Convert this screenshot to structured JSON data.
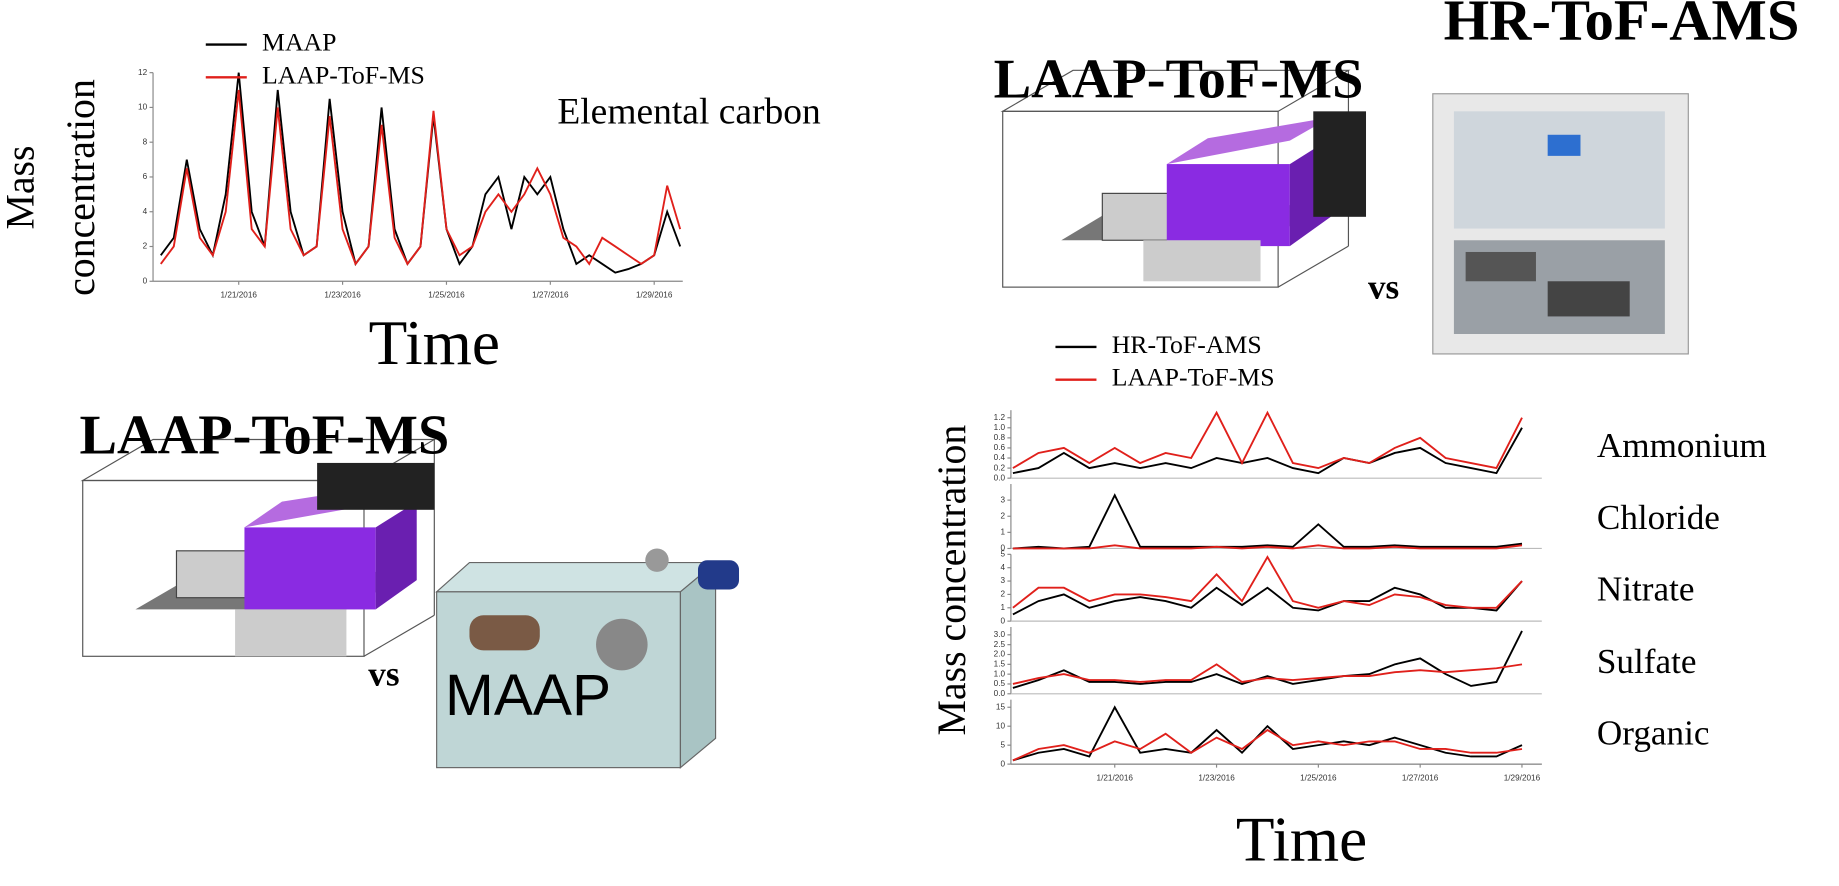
{
  "labels": [
    "HR-ToF-AMS",
    "LAAP-ToF-MS",
    "vs",
    "LAAP-ToF-MS",
    "vs",
    "MAAP"
  ],
  "chart_data": [
    {
      "type": "line",
      "annotation": "Elemental carbon",
      "xlabel": "Time",
      "ylabel": [
        "Mass",
        "concentration"
      ],
      "x": [
        19.5,
        19.75,
        20,
        20.25,
        20.5,
        20.75,
        21,
        21.25,
        21.5,
        21.75,
        22,
        22.25,
        22.5,
        22.75,
        23,
        23.25,
        23.5,
        23.75,
        24,
        24.25,
        24.5,
        24.75,
        25,
        25.25,
        25.5,
        25.75,
        26,
        26.25,
        26.5,
        26.75,
        27,
        27.25,
        27.5,
        27.75,
        28,
        28.25,
        28.5,
        28.75,
        29,
        29.25,
        29.5
      ],
      "xlim": [
        19.35,
        29.55
      ],
      "xticks": [
        {
          "value": 21,
          "label": "1/21/2016"
        },
        {
          "value": 23,
          "label": "1/23/2016"
        },
        {
          "value": 25,
          "label": "1/25/2016"
        },
        {
          "value": 27,
          "label": "1/27/2016"
        },
        {
          "value": 29,
          "label": "1/29/2016"
        }
      ],
      "ylim": [
        0,
        12
      ],
      "yticks": [
        0,
        2,
        4,
        6,
        8,
        10,
        12
      ],
      "series": [
        {
          "name": "MAAP",
          "color": "#000000",
          "values": [
            1.5,
            2.5,
            7,
            3,
            1.5,
            5,
            12,
            4,
            2,
            11,
            4,
            1.5,
            2,
            10.5,
            4,
            1,
            2,
            10,
            3,
            1,
            2,
            9.5,
            3,
            1,
            2,
            5,
            6,
            3,
            6,
            5,
            6,
            3,
            1,
            1.5,
            1,
            0.5,
            0.7,
            1,
            1.5,
            4,
            2
          ]
        },
        {
          "name": "LAAP-ToF-MS",
          "color": "#e0201b",
          "values": [
            1,
            2,
            6.5,
            2.5,
            1.5,
            4,
            11,
            3,
            2,
            10,
            3,
            1.5,
            2,
            9.5,
            3,
            1,
            2,
            9,
            2.5,
            1,
            2,
            9.8,
            3,
            1.5,
            2,
            4,
            5,
            4,
            5,
            6.5,
            5,
            2.5,
            2,
            1,
            2.5,
            2,
            1.5,
            1,
            1.5,
            5.5,
            3
          ]
        }
      ]
    },
    {
      "type": "line",
      "xlabel": "Time",
      "ylabel": "Mass concentration",
      "x": [
        19,
        19.5,
        20,
        20.5,
        21,
        21.5,
        22,
        22.5,
        23,
        23.5,
        24,
        24.5,
        25,
        25.5,
        26,
        26.5,
        27,
        27.5,
        28,
        28.5,
        29
      ],
      "xlim": [
        18.96,
        29.39
      ],
      "xticks": [
        {
          "value": 21,
          "label": "1/21/2016"
        },
        {
          "value": 23,
          "label": "1/23/2016"
        },
        {
          "value": 25,
          "label": "1/25/2016"
        },
        {
          "value": 27,
          "label": "1/27/2016"
        },
        {
          "value": 29,
          "label": "1/29/2016"
        }
      ],
      "series": [
        {
          "name": "HR-ToF-AMS",
          "color": "#000000"
        },
        {
          "name": "LAAP-ToF-MS",
          "color": "#e0201b"
        }
      ],
      "panels": [
        {
          "name": "Ammonium",
          "ylim": [
            0,
            1.35
          ],
          "yticks": [
            {
              "value": 0,
              "label": "0.0"
            },
            0.2,
            0.4,
            0.6,
            0.8,
            {
              "value": 1,
              "label": "1.0"
            },
            1.2
          ],
          "values": [
            [
              0.1,
              0.2,
              0.5,
              0.2,
              0.3,
              0.2,
              0.3,
              0.2,
              0.4,
              0.3,
              0.4,
              0.2,
              0.1,
              0.4,
              0.3,
              0.5,
              0.6,
              0.3,
              0.2,
              0.1,
              1.0
            ],
            [
              0.2,
              0.5,
              0.6,
              0.3,
              0.6,
              0.3,
              0.5,
              0.4,
              1.3,
              0.3,
              1.3,
              0.3,
              0.2,
              0.4,
              0.3,
              0.6,
              0.8,
              0.4,
              0.3,
              0.2,
              1.2
            ]
          ]
        },
        {
          "name": "Chloride",
          "ylim": [
            0,
            4
          ],
          "yticks": [
            0,
            1,
            2,
            3
          ],
          "values": [
            [
              0,
              0.1,
              0,
              0.1,
              3.3,
              0.1,
              0.1,
              0.1,
              0.1,
              0.1,
              0.2,
              0.1,
              1.5,
              0.1,
              0.1,
              0.2,
              0.1,
              0.1,
              0.1,
              0.1,
              0.3
            ],
            [
              0,
              0,
              0,
              0,
              0.2,
              0,
              0,
              0,
              0.1,
              0,
              0.1,
              0,
              0.2,
              0,
              0,
              0.1,
              0,
              0,
              0,
              0,
              0.2
            ]
          ]
        },
        {
          "name": "Nitrate",
          "ylim": [
            0,
            5
          ],
          "yticks": [
            0,
            1,
            2,
            3,
            4,
            5
          ],
          "values": [
            [
              0.5,
              1.5,
              2,
              1,
              1.5,
              1.8,
              1.5,
              1,
              2.5,
              1.2,
              2.5,
              1,
              0.8,
              1.5,
              1.5,
              2.5,
              2,
              1,
              1,
              0.8,
              3
            ],
            [
              1,
              2.5,
              2.5,
              1.5,
              2,
              2,
              1.8,
              1.5,
              3.5,
              1.5,
              4.8,
              1.5,
              1,
              1.5,
              1.2,
              2,
              1.8,
              1.2,
              1,
              1,
              3
            ]
          ]
        },
        {
          "name": "Sulfate",
          "ylim": [
            0,
            3.4
          ],
          "yticks": [
            {
              "value": 0,
              "label": "0.0"
            },
            0.5,
            {
              "value": 1,
              "label": "1.0"
            },
            1.5,
            {
              "value": 2,
              "label": "2.0"
            },
            2.5,
            {
              "value": 3,
              "label": "3.0"
            }
          ],
          "values": [
            [
              0.3,
              0.7,
              1.2,
              0.6,
              0.6,
              0.5,
              0.6,
              0.6,
              1.0,
              0.5,
              0.9,
              0.5,
              0.7,
              0.9,
              1.0,
              1.5,
              1.8,
              1.0,
              0.4,
              0.6,
              3.2
            ],
            [
              0.5,
              0.8,
              1.0,
              0.7,
              0.7,
              0.6,
              0.7,
              0.7,
              1.5,
              0.6,
              0.8,
              0.7,
              0.8,
              0.9,
              0.9,
              1.1,
              1.2,
              1.1,
              1.2,
              1.3,
              1.5
            ]
          ]
        },
        {
          "name": "Organic",
          "ylim": [
            0,
            17
          ],
          "yticks": [
            0,
            5,
            10,
            15
          ],
          "values": [
            [
              1,
              3,
              4,
              2,
              15,
              3,
              4,
              3,
              9,
              3,
              10,
              4,
              5,
              6,
              5,
              7,
              5,
              3,
              2,
              2,
              5
            ],
            [
              1,
              4,
              5,
              3,
              6,
              4,
              8,
              3,
              7,
              4,
              9,
              5,
              6,
              5,
              6,
              6,
              4,
              4,
              3,
              3,
              4
            ]
          ]
        }
      ]
    }
  ]
}
